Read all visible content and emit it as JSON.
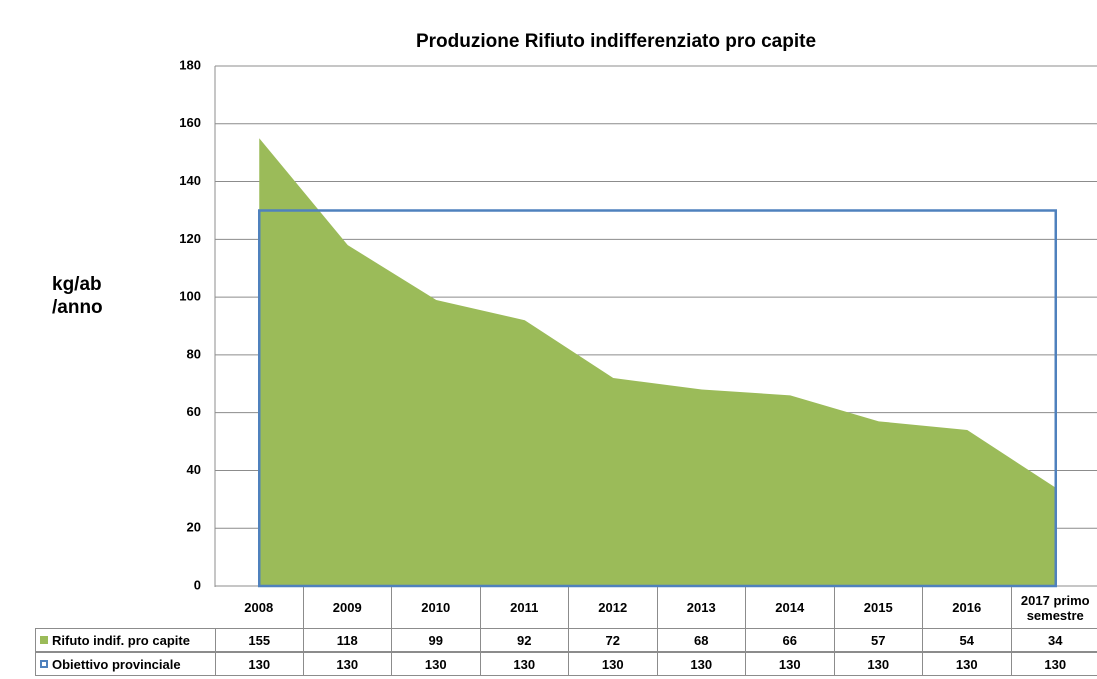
{
  "chart_data": {
    "type": "area",
    "title": "Produzione Rifiuto indifferenziato pro capite",
    "y_label": "kg/ab /anno",
    "categories": [
      "2008",
      "2009",
      "2010",
      "2011",
      "2012",
      "2013",
      "2014",
      "2015",
      "2016",
      "2017 primo semestre"
    ],
    "series": [
      {
        "name": "Rifuto indif. pro capite",
        "color": "#9bbb59",
        "style": "filled",
        "values": [
          155,
          118,
          99,
          92,
          72,
          68,
          66,
          57,
          54,
          34
        ]
      },
      {
        "name": "Obiettivo provinciale",
        "color": "#4f81bd",
        "style": "outline",
        "values": [
          130,
          130,
          130,
          130,
          130,
          130,
          130,
          130,
          130,
          130
        ]
      }
    ],
    "ylim": [
      0,
      180
    ],
    "yticks": [
      0,
      20,
      40,
      60,
      80,
      100,
      120,
      140,
      160,
      180
    ],
    "grid": true,
    "data_table": true
  }
}
